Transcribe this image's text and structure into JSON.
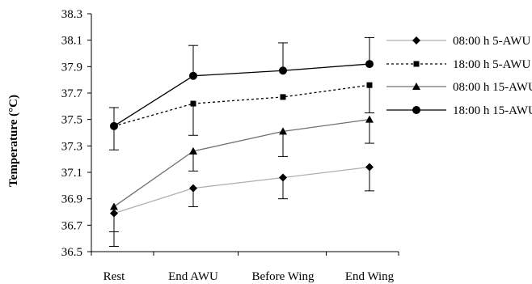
{
  "chart_data": {
    "type": "line",
    "title": "",
    "xlabel": "",
    "ylabel": "Temperature (°C)",
    "categories": [
      "Rest",
      "End AWU",
      "Before Wing",
      "End Wing"
    ],
    "ylim": [
      36.5,
      38.3
    ],
    "yticks": [
      36.5,
      36.7,
      36.9,
      37.1,
      37.3,
      37.5,
      37.7,
      37.9,
      38.1,
      38.3
    ],
    "ytick_labels": [
      "36.5",
      "36.7",
      "36.9",
      "37.1",
      "37.3",
      "37.5",
      "37.7",
      "37.9",
      "38.1",
      "38.3"
    ],
    "grid": false,
    "legend_position": "top-right",
    "series": [
      {
        "name": "08:00 h 5-AWU",
        "values": [
          36.79,
          36.98,
          37.06,
          37.14
        ],
        "error_low": [
          36.65,
          36.84,
          36.9,
          36.96
        ],
        "error_high": null,
        "marker": "diamond",
        "line_style": "solid",
        "color": "#b0b0b0"
      },
      {
        "name": "18:00 h 5-AWU",
        "values": [
          37.45,
          37.62,
          37.67,
          37.76
        ],
        "error_low": [
          null,
          37.38,
          null,
          37.55
        ],
        "error_high": null,
        "marker": "square",
        "line_style": "dotted",
        "color": "#000000"
      },
      {
        "name": "08:00 h 15-AWU",
        "values": [
          36.84,
          37.26,
          37.41,
          37.5
        ],
        "error_low": [
          36.54,
          37.11,
          37.22,
          37.32
        ],
        "error_high": null,
        "marker": "triangle",
        "line_style": "solid",
        "color": "#707070"
      },
      {
        "name": "18:00 h 15-AWU",
        "values": [
          37.45,
          37.83,
          37.87,
          37.92
        ],
        "error_low": [
          37.27,
          null,
          null,
          null
        ],
        "error_high": [
          37.59,
          38.06,
          38.08,
          38.12
        ],
        "marker": "circle",
        "line_style": "solid",
        "color": "#000000"
      }
    ]
  }
}
